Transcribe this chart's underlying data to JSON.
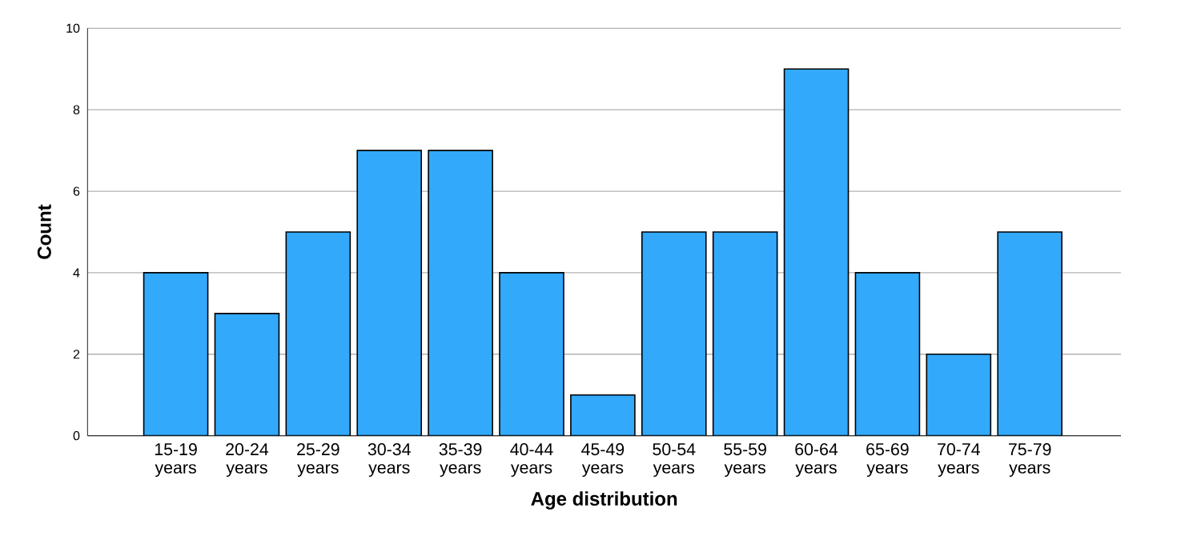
{
  "chart_data": {
    "type": "bar",
    "xlabel": "Age distribution",
    "ylabel": "Count",
    "categories": [
      "15-19 years",
      "20-24 years",
      "25-29 years",
      "30-34 years",
      "35-39 years",
      "40-44 years",
      "45-49 years",
      "50-54 years",
      "55-59 years",
      "60-64 years",
      "65-69 years",
      "70-74 years",
      "75-79 years"
    ],
    "values": [
      4,
      3,
      5,
      7,
      7,
      4,
      1,
      5,
      5,
      9,
      4,
      2,
      5
    ],
    "color": "#33a9fb",
    "ylim": [
      0,
      10
    ],
    "yticks": [
      0,
      2,
      4,
      6,
      8,
      10
    ],
    "grid": "y"
  }
}
